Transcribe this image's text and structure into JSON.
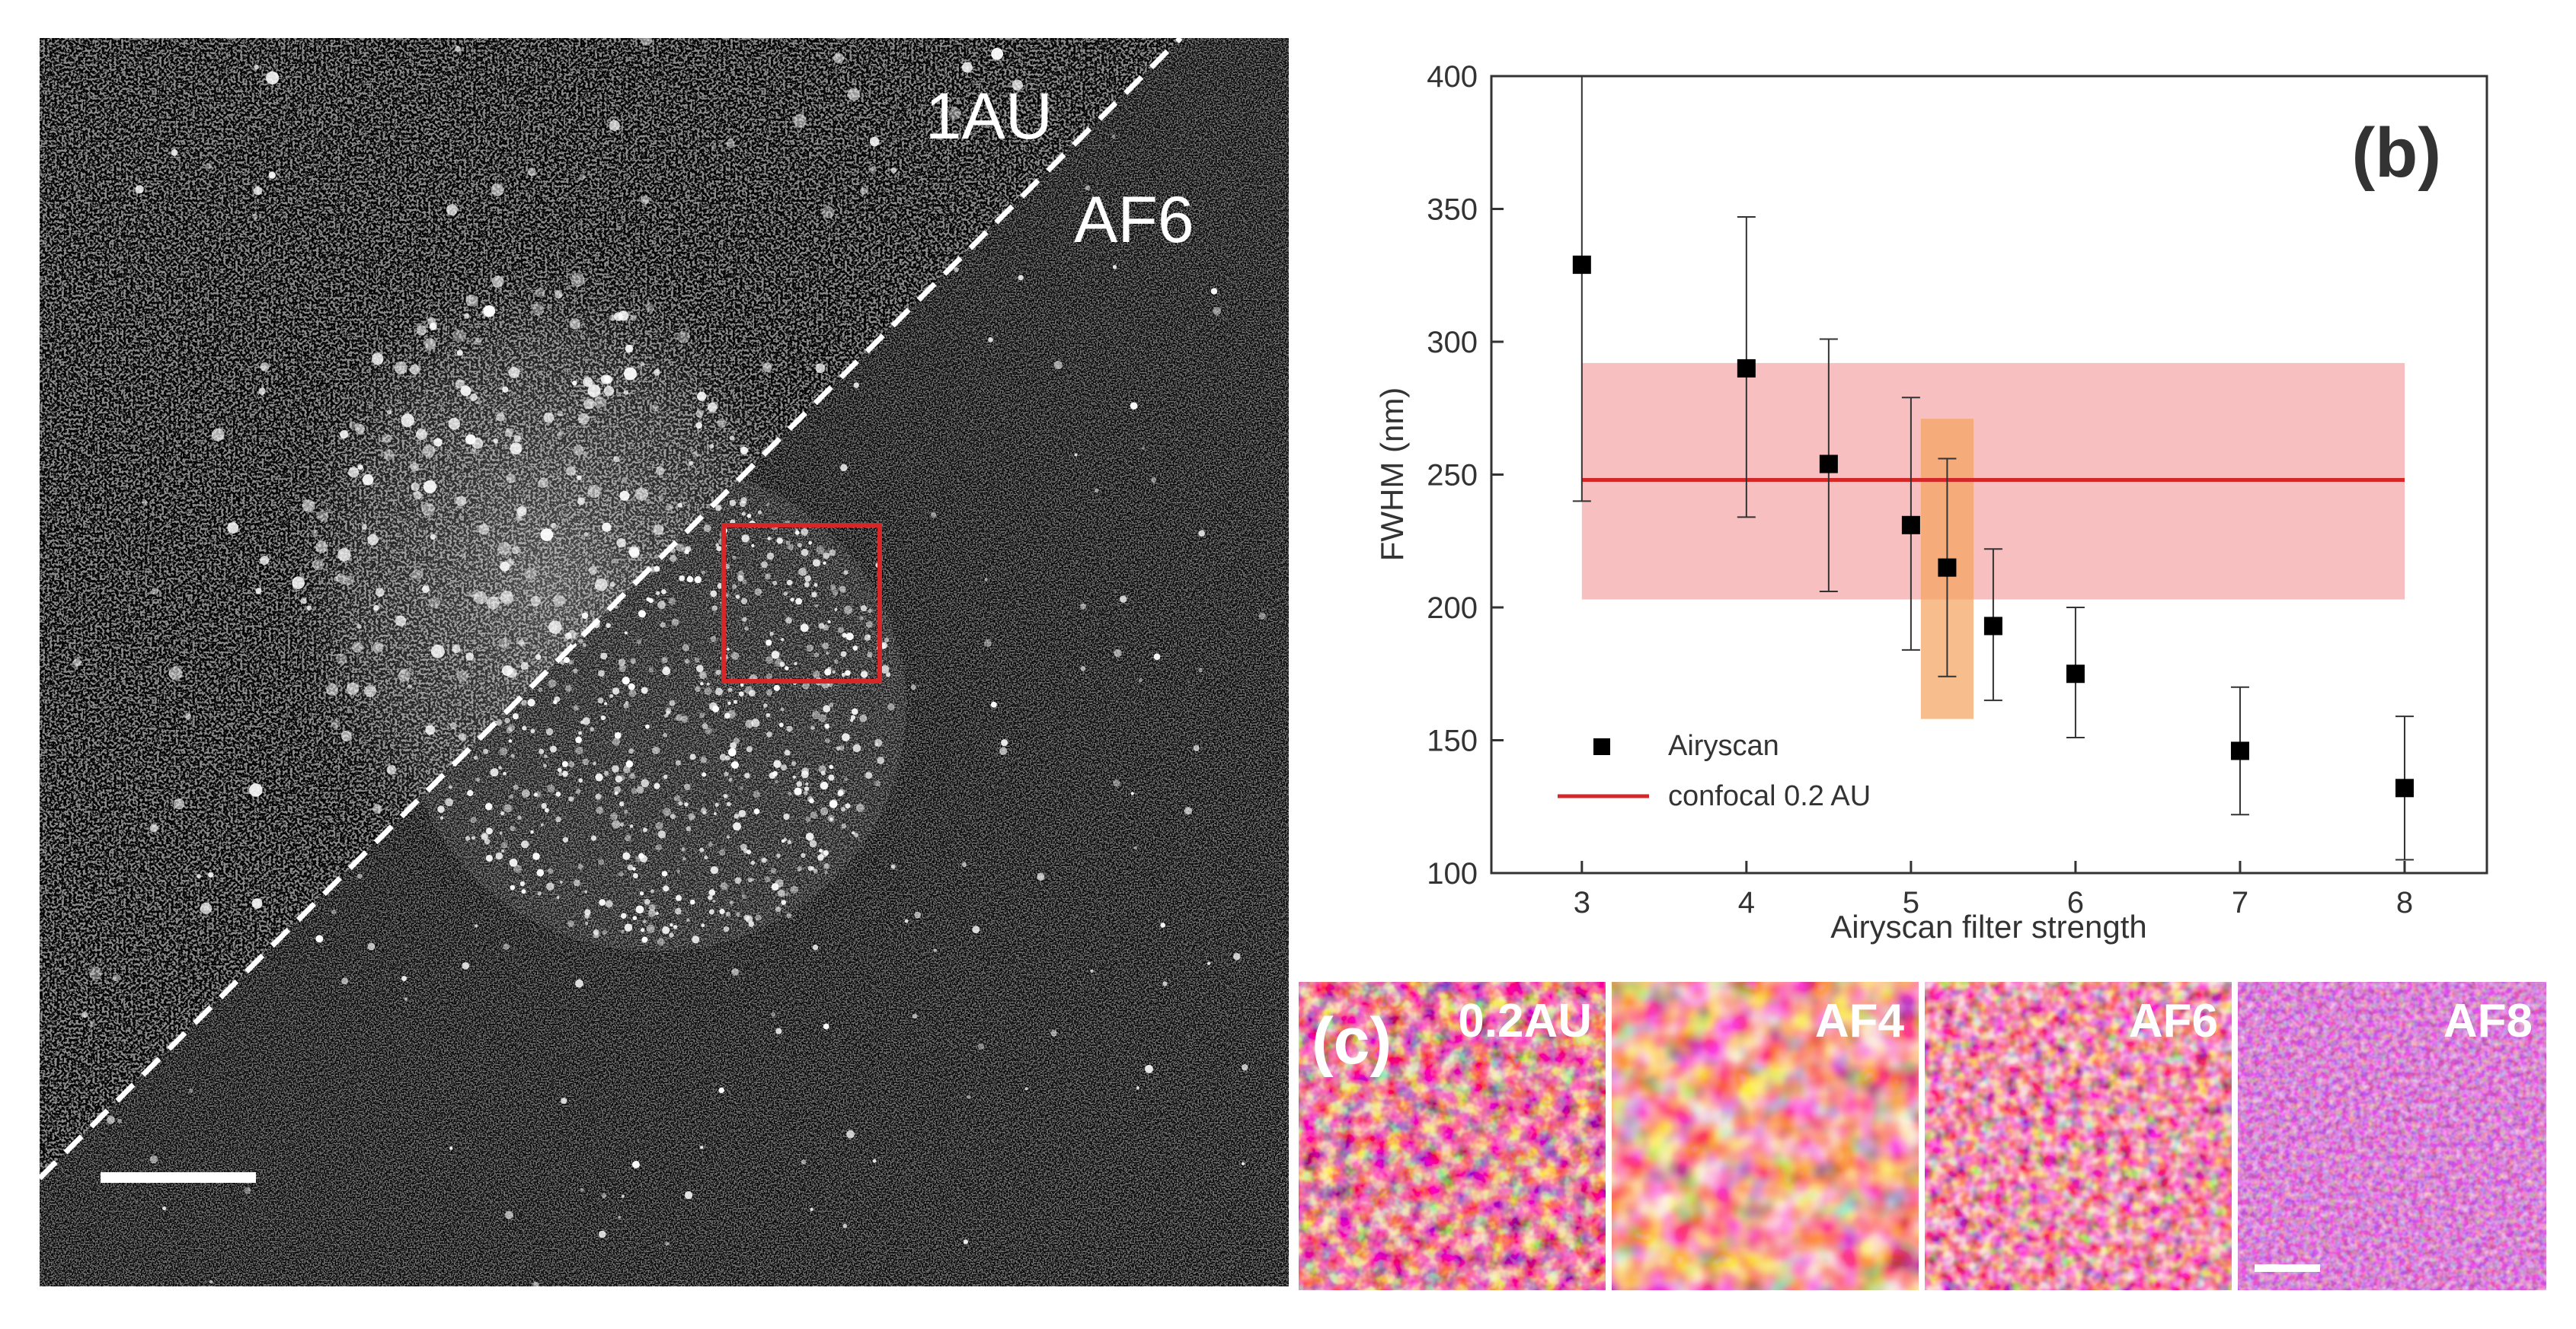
{
  "panel_a": {
    "upper_label": "1AU",
    "lower_label": "AF6"
  },
  "panel_b": {
    "label": "(b)"
  },
  "panel_c": {
    "label": "(c)",
    "tiles": [
      {
        "label": "0.2AU",
        "colormap": "fire",
        "scale_bar": false
      },
      {
        "label": "AF4",
        "colormap": "fire",
        "scale_bar": false
      },
      {
        "label": "AF6",
        "colormap": "fire",
        "scale_bar": false
      },
      {
        "label": "AF8",
        "colormap": "fire",
        "scale_bar": true
      }
    ]
  },
  "colors": {
    "airyscan_marker": "#000000",
    "confocal_line": "#d62728",
    "confocal_band": "#f08080",
    "highlight_band": "#f4a460",
    "roi_box": "#d62728"
  },
  "chart_data": {
    "type": "scatter",
    "title": "",
    "xlabel": "Airyscan filter strength",
    "ylabel": "FWHM (nm)",
    "xlim": [
      2.45,
      8.5
    ],
    "ylim": [
      100,
      400
    ],
    "xticks": [
      3,
      4,
      5,
      6,
      7,
      8
    ],
    "yticks": [
      100,
      150,
      200,
      250,
      300,
      350,
      400
    ],
    "grid": false,
    "legend_position": "bottom-left",
    "series": [
      {
        "name": "Airyscan",
        "kind": "points",
        "x": [
          3,
          4,
          4.5,
          5,
          5.22,
          5.5,
          6,
          7,
          8
        ],
        "y": [
          329,
          290,
          254,
          231,
          215,
          193,
          175,
          146,
          132
        ],
        "yerr_low": [
          240,
          234,
          206,
          184,
          174,
          165,
          151,
          122,
          105
        ],
        "yerr_high": [
          400,
          347,
          301,
          279,
          256,
          222,
          200,
          170,
          159
        ]
      },
      {
        "name": "confocal 0.2 AU",
        "kind": "line",
        "x": [
          3,
          8
        ],
        "y": [
          248,
          248
        ],
        "band_low": 203,
        "band_high": 292
      }
    ],
    "highlight_region": {
      "x": [
        5.06,
        5.38
      ],
      "y": [
        158,
        271
      ]
    }
  }
}
